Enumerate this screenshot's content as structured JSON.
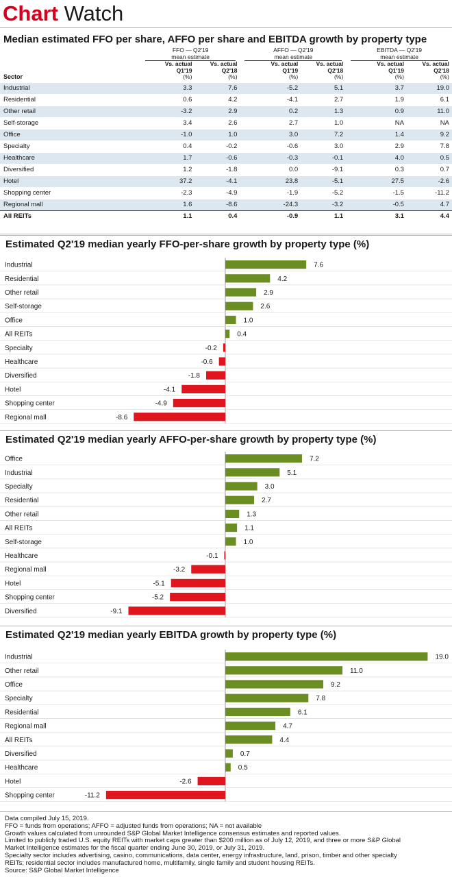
{
  "brand": {
    "part1": "Chart",
    "part2": " Watch"
  },
  "table": {
    "title": "Median estimated FFO per share, AFFO per share and EBITDA growth by property type",
    "groups": [
      {
        "line1": "FFO — Q2'19",
        "line2": "mean estimate"
      },
      {
        "line1": "AFFO — Q2'19",
        "line2": "mean estimate"
      },
      {
        "line1": "EBITDA — Q2'19",
        "line2": "mean estimate"
      }
    ],
    "sector_header": "Sector",
    "subheaders": [
      {
        "a": "Vs. actual",
        "b": "Q1'19",
        "c": "(%)"
      },
      {
        "a": "Vs. actual",
        "b": "Q2'18",
        "c": "(%)"
      },
      {
        "a": "Vs. actual",
        "b": "Q1'19",
        "c": "(%)"
      },
      {
        "a": "Vs. actual",
        "b": "Q2'18",
        "c": "(%)"
      },
      {
        "a": "Vs. actual",
        "b": "Q1'19",
        "c": "(%)"
      },
      {
        "a": "Vs. actual",
        "b": "Q2'18",
        "c": "(%)"
      }
    ],
    "rows": [
      [
        "Industrial",
        "3.3",
        "7.6",
        "-5.2",
        "5.1",
        "3.7",
        "19.0"
      ],
      [
        "Residential",
        "0.6",
        "4.2",
        "-4.1",
        "2.7",
        "1.9",
        "6.1"
      ],
      [
        "Other retail",
        "-3.2",
        "2.9",
        "0.2",
        "1.3",
        "0.9",
        "11.0"
      ],
      [
        "Self-storage",
        "3.4",
        "2.6",
        "2.7",
        "1.0",
        "NA",
        "NA"
      ],
      [
        "Office",
        "-1.0",
        "1.0",
        "3.0",
        "7.2",
        "1.4",
        "9.2"
      ],
      [
        "Specialty",
        "0.4",
        "-0.2",
        "-0.6",
        "3.0",
        "2.9",
        "7.8"
      ],
      [
        "Healthcare",
        "1.7",
        "-0.6",
        "-0.3",
        "-0.1",
        "4.0",
        "0.5"
      ],
      [
        "Diversified",
        "1.2",
        "-1.8",
        "0.0",
        "-9.1",
        "0.3",
        "0.7"
      ],
      [
        "Hotel",
        "37.2",
        "-4.1",
        "23.8",
        "-5.1",
        "27.5",
        "-2.6"
      ],
      [
        "Shopping center",
        "-2.3",
        "-4.9",
        "-1.9",
        "-5.2",
        "-1.5",
        "-11.2"
      ],
      [
        "Regional mall",
        "1.6",
        "-8.6",
        "-24.3",
        "-3.2",
        "-0.5",
        "4.7"
      ]
    ],
    "total": [
      "All REITs",
      "1.1",
      "0.4",
      "-0.9",
      "1.1",
      "3.1",
      "4.4"
    ]
  },
  "chart_data": [
    {
      "type": "bar",
      "orientation": "horizontal",
      "title": "Estimated Q2'19 median yearly FFO-per-share growth by property type (%)",
      "categories": [
        "Industrial",
        "Residential",
        "Other retail",
        "Self-storage",
        "Office",
        "All REITs",
        "Specialty",
        "Healthcare",
        "Diversified",
        "Hotel",
        "Shopping center",
        "Regional mall"
      ],
      "values": [
        7.6,
        4.2,
        2.9,
        2.6,
        1.0,
        0.4,
        -0.2,
        -0.6,
        -1.8,
        -4.1,
        -4.9,
        -8.6
      ],
      "labels": [
        "7.6",
        "4.2",
        "2.9",
        "2.6",
        "1.0",
        "0.4",
        "-0.2",
        "-0.6",
        "-1.8",
        "-4.1",
        "-4.9",
        "-8.6"
      ],
      "xlim": [
        -11.2,
        19.0
      ],
      "colors": {
        "positive": "#6b8e23",
        "negative": "#e0161e"
      }
    },
    {
      "type": "bar",
      "orientation": "horizontal",
      "title": "Estimated Q2'19 median yearly AFFO-per-share growth by property type (%)",
      "categories": [
        "Office",
        "Industrial",
        "Specialty",
        "Residential",
        "Other retail",
        "All REITs",
        "Self-storage",
        "Healthcare",
        "Regional mall",
        "Hotel",
        "Shopping center",
        "Diversified"
      ],
      "values": [
        7.2,
        5.1,
        3.0,
        2.7,
        1.3,
        1.1,
        1.0,
        -0.1,
        -3.2,
        -5.1,
        -5.2,
        -9.1
      ],
      "labels": [
        "7.2",
        "5.1",
        "3.0",
        "2.7",
        "1.3",
        "1.1",
        "1.0",
        "-0.1",
        "-3.2",
        "-5.1",
        "-5.2",
        "-9.1"
      ],
      "xlim": [
        -11.2,
        19.0
      ],
      "colors": {
        "positive": "#6b8e23",
        "negative": "#e0161e"
      }
    },
    {
      "type": "bar",
      "orientation": "horizontal",
      "title": "Estimated Q2'19 median yearly EBITDA growth by property type (%)",
      "categories": [
        "Industrial",
        "Other retail",
        "Office",
        "Specialty",
        "Residential",
        "Regional mall",
        "All REITs",
        "Diversified",
        "Healthcare",
        "Hotel",
        "Shopping center"
      ],
      "values": [
        19.0,
        11.0,
        9.2,
        7.8,
        6.1,
        4.7,
        4.4,
        0.7,
        0.5,
        -2.6,
        -11.2
      ],
      "labels": [
        "19.0",
        "11.0",
        "9.2",
        "7.8",
        "6.1",
        "4.7",
        "4.4",
        "0.7",
        "0.5",
        "-2.6",
        "-11.2"
      ],
      "xlim": [
        -11.2,
        19.0
      ],
      "colors": {
        "positive": "#6b8e23",
        "negative": "#e0161e"
      }
    }
  ],
  "notes": [
    "Data compiled July 15, 2019.",
    "FFO = funds from operations; AFFO = adjusted funds from operations; NA = not available",
    "Growth values calculated from unrounded S&P Global Market Intelligence consensus estimates and reported values.",
    "Limited to publicly traded U.S. equity REITs with market caps greater than $200 million as of July 12, 2019, and three or more S&P Global",
    "Market Intelligence estimates for the fiscal quarter ending June 30, 2019, or July 31, 2019.",
    "Specialty sector includes advertising, casino, communications, data center, energy infrastructure, land, prison, timber and other specialty",
    "REITs; residential sector includes manufactured home, multifamily, single family and student housing REITs.",
    "Source: S&P Global Market Intelligence"
  ]
}
